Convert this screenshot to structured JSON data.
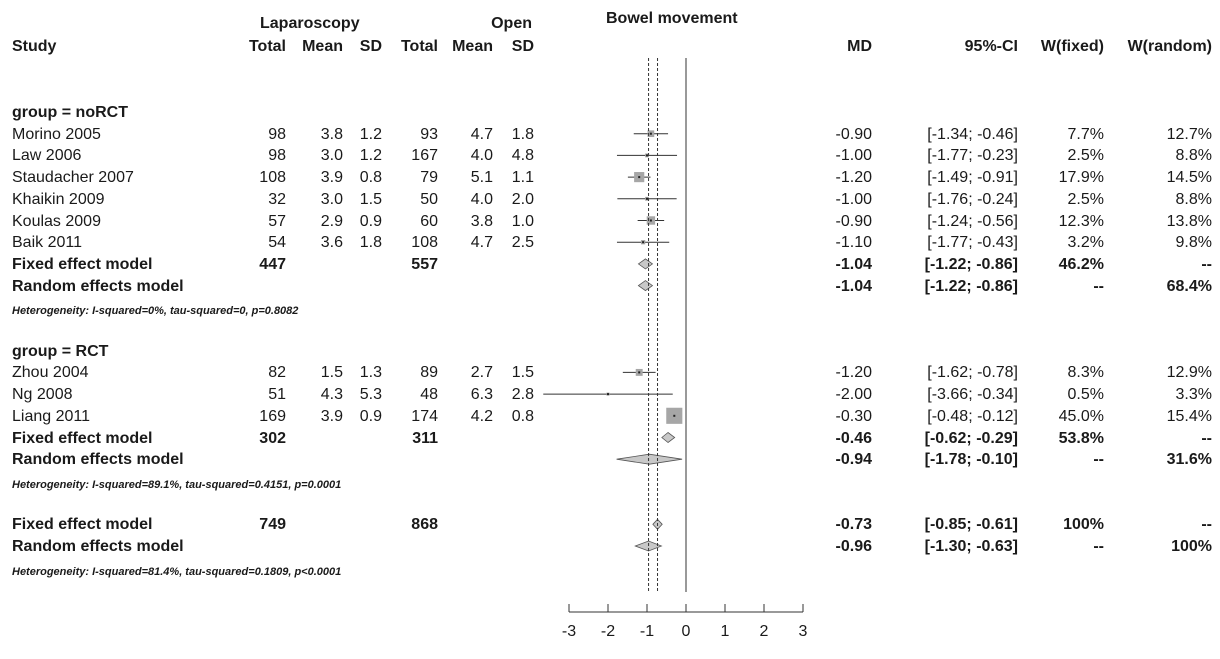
{
  "header": {
    "group_lap": "Laparoscopy",
    "group_open": "Open",
    "plot_title": "Bowel movement",
    "study": "Study",
    "total": "Total",
    "mean": "Mean",
    "sd": "SD",
    "md": "MD",
    "ci": "95%-CI",
    "wfixed": "W(fixed)",
    "wrandom": "W(random)"
  },
  "chart_data": {
    "type": "forest",
    "title": "Bowel movement",
    "xlim": [
      -3,
      3
    ],
    "xticks": [
      -3,
      -2,
      -1,
      0,
      1,
      2,
      3
    ],
    "overall_fixed_md": -0.73,
    "overall_random_md": -0.96,
    "rows": [
      {
        "kind": "group",
        "study": "group = noRCT"
      },
      {
        "kind": "study",
        "study": "Morino 2005",
        "lt": "98",
        "lm": "3.8",
        "ls": "1.2",
        "ot": "93",
        "om": "4.7",
        "os": "1.8",
        "md": -0.9,
        "lo": -1.34,
        "hi": -0.46,
        "md_txt": "-0.90",
        "ci": "[-1.34; -0.46]",
        "wf": "7.7%",
        "wr": "12.7%",
        "wt": 7.7
      },
      {
        "kind": "study",
        "study": "Law 2006",
        "lt": "98",
        "lm": "3.0",
        "ls": "1.2",
        "ot": "167",
        "om": "4.0",
        "os": "4.8",
        "md": -1.0,
        "lo": -1.77,
        "hi": -0.23,
        "md_txt": "-1.00",
        "ci": "[-1.77; -0.23]",
        "wf": "2.5%",
        "wr": "8.8%",
        "wt": 2.5
      },
      {
        "kind": "study",
        "study": "Staudacher 2007",
        "lt": "108",
        "lm": "3.9",
        "ls": "0.8",
        "ot": "79",
        "om": "5.1",
        "os": "1.1",
        "md": -1.2,
        "lo": -1.49,
        "hi": -0.91,
        "md_txt": "-1.20",
        "ci": "[-1.49; -0.91]",
        "wf": "17.9%",
        "wr": "14.5%",
        "wt": 17.9
      },
      {
        "kind": "study",
        "study": "Khaikin 2009",
        "lt": "32",
        "lm": "3.0",
        "ls": "1.5",
        "ot": "50",
        "om": "4.0",
        "os": "2.0",
        "md": -1.0,
        "lo": -1.76,
        "hi": -0.24,
        "md_txt": "-1.00",
        "ci": "[-1.76; -0.24]",
        "wf": "2.5%",
        "wr": "8.8%",
        "wt": 2.5
      },
      {
        "kind": "study",
        "study": "Koulas 2009",
        "lt": "57",
        "lm": "2.9",
        "ls": "0.9",
        "ot": "60",
        "om": "3.8",
        "os": "1.0",
        "md": -0.9,
        "lo": -1.24,
        "hi": -0.56,
        "md_txt": "-0.90",
        "ci": "[-1.24; -0.56]",
        "wf": "12.3%",
        "wr": "13.8%",
        "wt": 12.3
      },
      {
        "kind": "study",
        "study": "Baik 2011",
        "lt": "54",
        "lm": "3.6",
        "ls": "1.8",
        "ot": "108",
        "om": "4.7",
        "os": "2.5",
        "md": -1.1,
        "lo": -1.77,
        "hi": -0.43,
        "md_txt": "-1.10",
        "ci": "[-1.77; -0.43]",
        "wf": "3.2%",
        "wr": "9.8%",
        "wt": 3.2
      },
      {
        "kind": "fixed",
        "study": "Fixed effect model",
        "lt": "447",
        "ot": "557",
        "md": -1.04,
        "lo": -1.22,
        "hi": -0.86,
        "md_txt": "-1.04",
        "ci": "[-1.22; -0.86]",
        "wf": "46.2%",
        "wr": "--"
      },
      {
        "kind": "random",
        "study": "Random effects model",
        "md": -1.04,
        "lo": -1.22,
        "hi": -0.86,
        "md_txt": "-1.04",
        "ci": "[-1.22; -0.86]",
        "wf": "--",
        "wr": "68.4%"
      },
      {
        "kind": "het",
        "study": "Heterogeneity: I-squared=0%, tau-squared=0, p=0.8082"
      },
      {
        "kind": "blank"
      },
      {
        "kind": "group",
        "study": "group = RCT"
      },
      {
        "kind": "study",
        "study": "Zhou 2004",
        "lt": "82",
        "lm": "1.5",
        "ls": "1.3",
        "ot": "89",
        "om": "2.7",
        "os": "1.5",
        "md": -1.2,
        "lo": -1.62,
        "hi": -0.78,
        "md_txt": "-1.20",
        "ci": "[-1.62; -0.78]",
        "wf": "8.3%",
        "wr": "12.9%",
        "wt": 8.3
      },
      {
        "kind": "study",
        "study": "Ng 2008",
        "lt": "51",
        "lm": "4.3",
        "ls": "5.3",
        "ot": "48",
        "om": "6.3",
        "os": "2.8",
        "md": -2.0,
        "lo": -3.66,
        "hi": -0.34,
        "md_txt": "-2.00",
        "ci": "[-3.66; -0.34]",
        "wf": "0.5%",
        "wr": "3.3%",
        "wt": 0.5
      },
      {
        "kind": "study",
        "study": "Liang 2011",
        "lt": "169",
        "lm": "3.9",
        "ls": "0.9",
        "ot": "174",
        "om": "4.2",
        "os": "0.8",
        "md": -0.3,
        "lo": -0.48,
        "hi": -0.12,
        "md_txt": "-0.30",
        "ci": "[-0.48; -0.12]",
        "wf": "45.0%",
        "wr": "15.4%",
        "wt": 45.0
      },
      {
        "kind": "fixed",
        "study": "Fixed effect model",
        "lt": "302",
        "ot": "311",
        "md": -0.46,
        "lo": -0.62,
        "hi": -0.29,
        "md_txt": "-0.46",
        "ci": "[-0.62; -0.29]",
        "wf": "53.8%",
        "wr": "--"
      },
      {
        "kind": "random",
        "study": "Random effects model",
        "md": -0.94,
        "lo": -1.78,
        "hi": -0.1,
        "md_txt": "-0.94",
        "ci": "[-1.78; -0.10]",
        "wf": "--",
        "wr": "31.6%"
      },
      {
        "kind": "het",
        "study": "Heterogeneity: I-squared=89.1%, tau-squared=0.4151, p=0.0001"
      },
      {
        "kind": "blank"
      },
      {
        "kind": "fixed",
        "study": "Fixed effect model",
        "lt": "749",
        "ot": "868",
        "md": -0.73,
        "lo": -0.85,
        "hi": -0.61,
        "md_txt": "-0.73",
        "ci": "[-0.85; -0.61]",
        "wf": "100%",
        "wr": "--"
      },
      {
        "kind": "random",
        "study": "Random effects model",
        "md": -0.96,
        "lo": -1.3,
        "hi": -0.63,
        "md_txt": "-0.96",
        "ci": "[-1.30; -0.63]",
        "wf": "--",
        "wr": "100%"
      },
      {
        "kind": "het",
        "study": "Heterogeneity: I-squared=81.4%, tau-squared=0.1809, p<0.0001"
      }
    ]
  },
  "colors": {
    "text": "#1a1a1a",
    "square": "#a6a6a6",
    "diamond": "#c8c8c8",
    "line": "#333333"
  }
}
